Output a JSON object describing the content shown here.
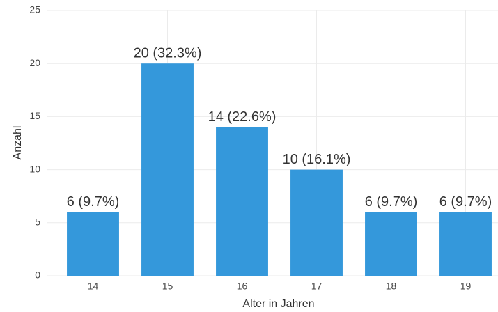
{
  "chart_data": {
    "type": "bar",
    "x_label": "Alter in Jahren",
    "y_label": "Anzahl",
    "categories": [
      "14",
      "15",
      "16",
      "17",
      "18",
      "19"
    ],
    "values": [
      6,
      20,
      14,
      10,
      6,
      6
    ],
    "value_labels": [
      "6 (9.7%)",
      "20 (32.3%)",
      "14 (22.6%)",
      "10 (16.1%)",
      "6 (9.7%)",
      "6 (9.7%)"
    ],
    "color": "#3498db",
    "ylim": [
      0,
      25
    ],
    "yticks": [
      0,
      5,
      10,
      15,
      20,
      25
    ],
    "grid": true
  }
}
